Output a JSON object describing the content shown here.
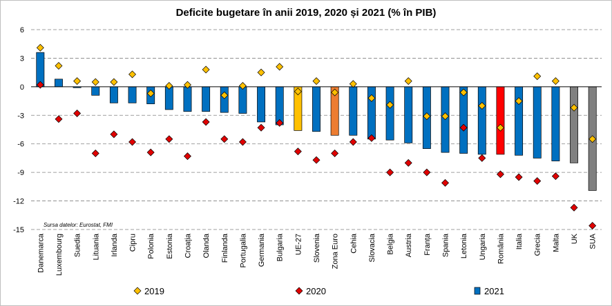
{
  "chart_data": {
    "type": "bar",
    "title": "Deficite bugetare în anii 2019, 2020 și 2021 (% în PIB)",
    "source_note": "Sursa datelor: Eurostat, FMI",
    "ylim": [
      -15,
      6
    ],
    "yticks": [
      6,
      3,
      0,
      -3,
      -6,
      -9,
      -12,
      -15
    ],
    "grid": "horizontal-dashed",
    "legend_position": "bottom",
    "categories": [
      "Danemarca",
      "Luxembourg",
      "Suedia",
      "Lituania",
      "Irlanda",
      "Cipru",
      "Polonia",
      "Estonia",
      "Croația",
      "Olanda",
      "Finlanda",
      "Portugalia",
      "Germania",
      "Bulgaria",
      "UE-27",
      "Slovenia",
      "Zona Euro",
      "Cehia",
      "Slovacia",
      "Belgia",
      "Austria",
      "Franța",
      "Spania",
      "Letonia",
      "Ungaria",
      "România",
      "Italia",
      "Grecia",
      "Malta",
      "UK",
      "SUA"
    ],
    "series": [
      {
        "name": "2019",
        "kind": "marker",
        "marker": "diamond",
        "color": "#FFC000",
        "values": [
          4.1,
          2.2,
          0.6,
          0.5,
          0.5,
          1.3,
          -0.7,
          0.1,
          0.2,
          1.8,
          -0.9,
          0.1,
          1.5,
          2.1,
          -0.5,
          0.6,
          -0.6,
          0.3,
          -1.2,
          -1.9,
          0.6,
          -3.1,
          -3.1,
          -0.6,
          -2.0,
          -4.3,
          -1.5,
          1.1,
          0.6,
          -2.2,
          -5.5
        ]
      },
      {
        "name": "2020",
        "kind": "marker",
        "marker": "diamond",
        "color": "#E00000",
        "values": [
          0.2,
          -3.4,
          -2.8,
          -7.0,
          -5.0,
          -5.8,
          -6.9,
          -5.5,
          -7.3,
          -3.7,
          -5.5,
          -5.8,
          -4.3,
          -3.8,
          -6.8,
          -7.7,
          -7.0,
          -5.8,
          -5.4,
          -9.0,
          -8.0,
          -9.0,
          -10.1,
          -4.3,
          -7.5,
          -9.2,
          -9.5,
          -9.9,
          -9.4,
          -12.7,
          -14.6
        ]
      },
      {
        "name": "2021",
        "kind": "bar",
        "color": "#0070C0",
        "values": [
          3.6,
          0.8,
          -0.1,
          -0.9,
          -1.7,
          -1.7,
          -1.8,
          -2.4,
          -2.6,
          -2.6,
          -2.7,
          -2.8,
          -3.7,
          -4.0,
          -4.6,
          -4.7,
          -5.1,
          -5.1,
          -5.5,
          -5.6,
          -5.9,
          -6.5,
          -6.9,
          -7.0,
          -7.1,
          -7.1,
          -7.2,
          -7.5,
          -7.8,
          -8.0,
          -10.9
        ]
      }
    ],
    "bar_color_overrides": {
      "UE-27": "#FFC000",
      "Zona Euro": "#ED7D31",
      "România": "#FF0000",
      "UK": "#808080",
      "SUA": "#808080"
    }
  }
}
